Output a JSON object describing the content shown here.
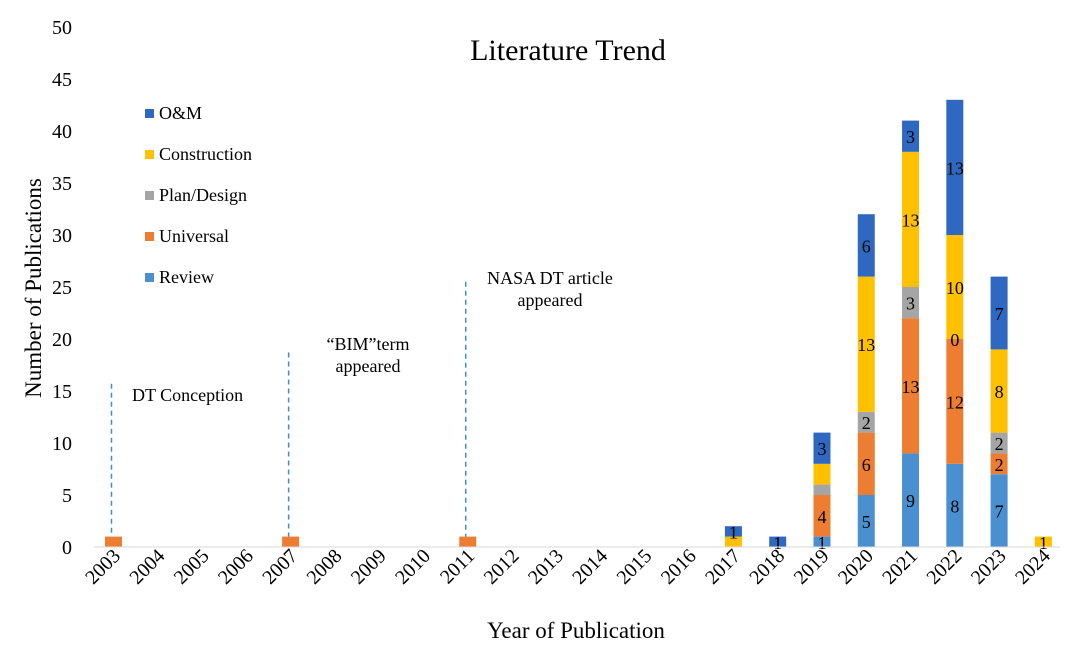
{
  "chart_data": {
    "type": "bar",
    "stacked": true,
    "title": "Literature Trend",
    "xlabel": "Year of Publication",
    "ylabel": "Number of Publications",
    "ylim": [
      0,
      50
    ],
    "yticks": [
      0,
      5,
      10,
      15,
      20,
      25,
      30,
      35,
      40,
      45,
      50
    ],
    "grid": false,
    "legend_position": "top-left",
    "categories": [
      "2003",
      "2004",
      "2005",
      "2006",
      "2007",
      "2008",
      "2009",
      "2010",
      "2011",
      "2012",
      "2013",
      "2014",
      "2015",
      "2016",
      "2017",
      "2018",
      "2019",
      "2020",
      "2021",
      "2022",
      "2023",
      "2024"
    ],
    "series": [
      {
        "name": "Review",
        "color": "#4a90d0",
        "values": [
          0,
          0,
          0,
          0,
          0,
          0,
          0,
          0,
          0,
          0,
          0,
          0,
          0,
          0,
          0,
          0,
          1,
          5,
          9,
          8,
          7,
          0
        ]
      },
      {
        "name": "Universal",
        "color": "#ed7d31",
        "values": [
          1,
          0,
          0,
          0,
          1,
          0,
          0,
          0,
          1,
          0,
          0,
          0,
          0,
          0,
          0,
          0,
          4,
          6,
          13,
          12,
          2,
          0
        ]
      },
      {
        "name": "Plan/Design",
        "color": "#a5a5a5",
        "values": [
          0,
          0,
          0,
          0,
          0,
          0,
          0,
          0,
          0,
          0,
          0,
          0,
          0,
          0,
          0,
          0,
          1,
          2,
          3,
          0,
          2,
          0
        ]
      },
      {
        "name": "Construction",
        "color": "#ffc000",
        "values": [
          0,
          0,
          0,
          0,
          0,
          0,
          0,
          0,
          0,
          0,
          0,
          0,
          0,
          0,
          1,
          0,
          2,
          13,
          13,
          10,
          8,
          1
        ]
      },
      {
        "name": "O&M",
        "color": "#2e68c0",
        "values": [
          0,
          0,
          0,
          0,
          0,
          0,
          0,
          0,
          0,
          0,
          0,
          0,
          0,
          0,
          1,
          1,
          3,
          6,
          3,
          13,
          7,
          0
        ]
      }
    ],
    "data_labels": [
      {
        "year": "2017",
        "series": "O&M",
        "text": "1"
      },
      {
        "year": "2018",
        "series": "O&M",
        "text": "1"
      },
      {
        "year": "2019",
        "series": "Review",
        "text": "1"
      },
      {
        "year": "2019",
        "series": "Universal",
        "text": "4"
      },
      {
        "year": "2019",
        "series": "O&M",
        "text": "3"
      },
      {
        "year": "2020",
        "series": "Review",
        "text": "5"
      },
      {
        "year": "2020",
        "series": "Universal",
        "text": "6"
      },
      {
        "year": "2020",
        "series": "Plan/Design",
        "text": "2"
      },
      {
        "year": "2020",
        "series": "Construction",
        "text": "13"
      },
      {
        "year": "2020",
        "series": "O&M",
        "text": "6"
      },
      {
        "year": "2021",
        "series": "Review",
        "text": "9"
      },
      {
        "year": "2021",
        "series": "Universal",
        "text": "13"
      },
      {
        "year": "2021",
        "series": "Plan/Design",
        "text": "3"
      },
      {
        "year": "2021",
        "series": "Construction",
        "text": "13"
      },
      {
        "year": "2021",
        "series": "O&M",
        "text": "3"
      },
      {
        "year": "2022",
        "series": "Review",
        "text": "8"
      },
      {
        "year": "2022",
        "series": "Universal",
        "text": "12"
      },
      {
        "year": "2022",
        "series": "Plan/Design",
        "text": "0"
      },
      {
        "year": "2022",
        "series": "Construction",
        "text": "10"
      },
      {
        "year": "2022",
        "series": "O&M",
        "text": "13"
      },
      {
        "year": "2023",
        "series": "Review",
        "text": "7"
      },
      {
        "year": "2023",
        "series": "Universal",
        "text": "2"
      },
      {
        "year": "2023",
        "series": "Plan/Design",
        "text": "2"
      },
      {
        "year": "2023",
        "series": "Construction",
        "text": "8"
      },
      {
        "year": "2023",
        "series": "O&M",
        "text": "7"
      },
      {
        "year": "2024",
        "series": "Construction",
        "text": "1"
      }
    ],
    "annotations": [
      {
        "year": "2003",
        "lines": [
          "DT Conception"
        ],
        "line_top_value": 15.7
      },
      {
        "year": "2007",
        "lines": [
          "“BIM”term",
          "appeared"
        ],
        "line_top_value": 18.7
      },
      {
        "year": "2011",
        "lines": [
          "NASA DT article",
          "appeared"
        ],
        "line_top_value": 25.5
      }
    ]
  }
}
